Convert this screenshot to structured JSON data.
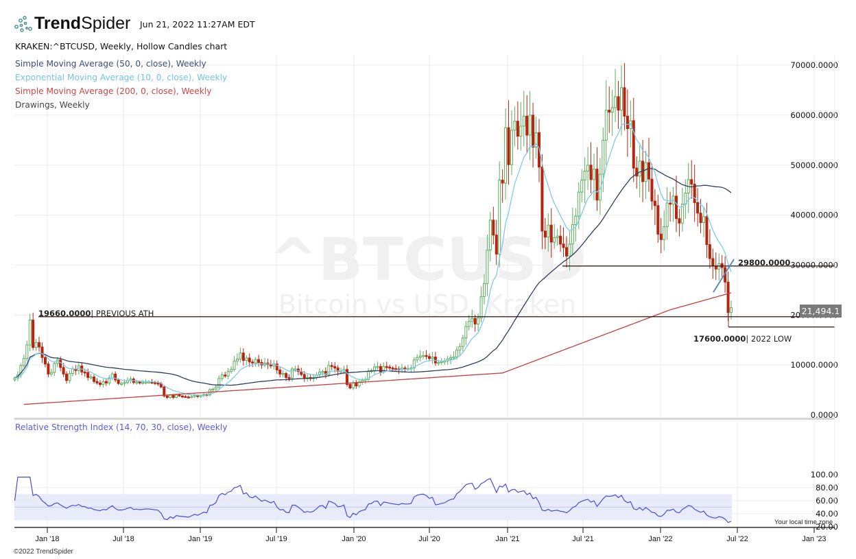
{
  "header": {
    "brand": {
      "bold": "Trend",
      "light": "Spider"
    },
    "timestamp": "Jun 21, 2022 11:27AM EDT",
    "symbol_line": "KRAKEN:^BTCUSD, Weekly, Hollow Candles chart"
  },
  "legend": [
    {
      "label": "Simple Moving Average (50, 0, close), Weekly",
      "color": "#3d4f73"
    },
    {
      "label": "Exponential Moving Average (10, 0, close), Weekly",
      "color": "#74c4e4"
    },
    {
      "label": "Simple Moving Average (200, 0, close), Weekly",
      "color": "#d04545"
    },
    {
      "label": "Drawings, Weekly",
      "color": "#444444"
    }
  ],
  "watermark": {
    "symbol": "^BTCUSD",
    "name": "Bitcoin vs USD, Kraken"
  },
  "annotations": {
    "previous_ath": {
      "value": "19660.0000",
      "text": "| PREVIOUS ATH"
    },
    "support_29800": {
      "value": "29800.0000"
    },
    "low_2022": {
      "value": "17600.0000",
      "text": "| 2022 LOW"
    }
  },
  "last_price": "21,494.1",
  "rsi_title": "Relative Strength Index (14, 70, 30, close), Weekly",
  "time_zone_note": "Your local time zone",
  "footer": "©2022 TrendSpider",
  "colors": {
    "up": "#5cad5c",
    "down": "#b5250f",
    "sma50": "#2f3d5c",
    "ema10": "#7ccbe8",
    "sma200": "#cc3b3b",
    "rsi": "#4a4ad8",
    "rsi_band": "#e8ebfa",
    "grid": "#ebebeb",
    "hline": "#2a0f0f",
    "trendline": "#5b8ab5"
  },
  "chart_data": {
    "type": "candlestick",
    "title": "KRAKEN:^BTCUSD, Weekly, Hollow Candles chart",
    "price_axis": {
      "ticks": [
        0,
        10000,
        20000,
        30000,
        40000,
        50000,
        60000,
        70000
      ],
      "tick_labels": [
        "0.0000",
        "10000.0000",
        "20000.0000",
        "30000.0000",
        "40000.0000",
        "50000.0000",
        "60000.0000",
        "70000.0000"
      ]
    },
    "rsi_axis": {
      "ticks": [
        20,
        40,
        60,
        80,
        100
      ],
      "tick_labels": [
        "20.00",
        "40.00",
        "60.00",
        "80.00",
        "100.00"
      ],
      "overbought": 70,
      "oversold": 30
    },
    "x_ticks": [
      "Jan '18",
      "Jul '18",
      "Jan '19",
      "Jul '19",
      "Jan '20",
      "Jul '20",
      "Jan '21",
      "Jul '21",
      "Jan '22",
      "Jul '22",
      "Jan '23"
    ],
    "start_week": "2017-11-06",
    "weekly_close": [
      7400,
      8000,
      9900,
      11300,
      14000,
      19000,
      13500,
      14500,
      13600,
      11500,
      10200,
      8200,
      8500,
      10300,
      11000,
      9500,
      8200,
      6900,
      8300,
      9200,
      8900,
      9800,
      8600,
      8500,
      7500,
      7600,
      6700,
      6400,
      6100,
      6700,
      6400,
      7400,
      8200,
      7000,
      6300,
      6300,
      6500,
      6900,
      7200,
      6500,
      6600,
      6400,
      6500,
      6600,
      6600,
      6500,
      6400,
      6300,
      5600,
      3800,
      3500,
      4000,
      3500,
      4000,
      3800,
      3700,
      3600,
      3500,
      3700,
      3900,
      3700,
      3900,
      4100,
      4000,
      5100,
      5200,
      5600,
      7300,
      8000,
      7800,
      8700,
      9100,
      10800,
      11200,
      12400,
      10900,
      11400,
      10600,
      10400,
      11100,
      10500,
      10000,
      10400,
      10100,
      9800,
      10200,
      9000,
      8200,
      8300,
      7500,
      7400,
      9200,
      9200,
      8700,
      8100,
      7300,
      7500,
      7300,
      7500,
      8000,
      8600,
      8700,
      8100,
      9900,
      9700,
      9400,
      8700,
      8800,
      9100,
      6100,
      5400,
      6400,
      5800,
      6600,
      6900,
      7100,
      8700,
      8900,
      9600,
      9700,
      8600,
      9700,
      9600,
      9400,
      9300,
      9200,
      9100,
      9400,
      9300,
      9300,
      9400,
      11000,
      11500,
      11800,
      11900,
      11700,
      11300,
      11600,
      10400,
      10500,
      10700,
      10800,
      11200,
      11500,
      11600,
      13000,
      13700,
      15400,
      17700,
      18700,
      19300,
      18200,
      19400,
      23700,
      26300,
      33000,
      39000,
      36000,
      32200,
      47000,
      46400,
      57500,
      50100,
      57000,
      58800,
      55800,
      57800,
      59800,
      56000,
      60000,
      53600,
      56500,
      49600,
      36800,
      35600,
      38000,
      34600,
      35500,
      35800,
      34200,
      33500,
      31800,
      34200,
      38100,
      39800,
      44600,
      47000,
      48800,
      50000,
      47100,
      49200,
      43000,
      48200,
      55000,
      61000,
      60600,
      61500,
      63700,
      61000,
      65500,
      59800,
      57300,
      58900,
      49400,
      47800,
      50800,
      46700,
      50500,
      47200,
      42800,
      41900,
      36200,
      35100,
      37700,
      42400,
      42200,
      43800,
      39300,
      38400,
      42200,
      44400,
      47100,
      46200,
      42500,
      40400,
      38500,
      39700,
      34100,
      31300,
      29800,
      29200,
      30300,
      29500,
      26600,
      20500,
      21494
    ],
    "sma50_approx": "rises from ~6000 (2018) to ~9000 peak Jan 2019 region, down to ~4000, then ~48000 peak early 2022, ends ~43000",
    "sma200_last": 22500,
    "ema10_last": 29000,
    "horizontal_levels": [
      {
        "value": 19660,
        "label": "19660.0000 | PREVIOUS ATH"
      },
      {
        "value": 29800,
        "label": "29800.0000"
      },
      {
        "value": 17600,
        "label": "17600.0000 | 2022 LOW"
      }
    ],
    "rsi_last": 29,
    "rsi_range_observed": [
      29,
      94
    ],
    "last_price": 21494.1,
    "xlabel": "",
    "ylabel": ""
  }
}
